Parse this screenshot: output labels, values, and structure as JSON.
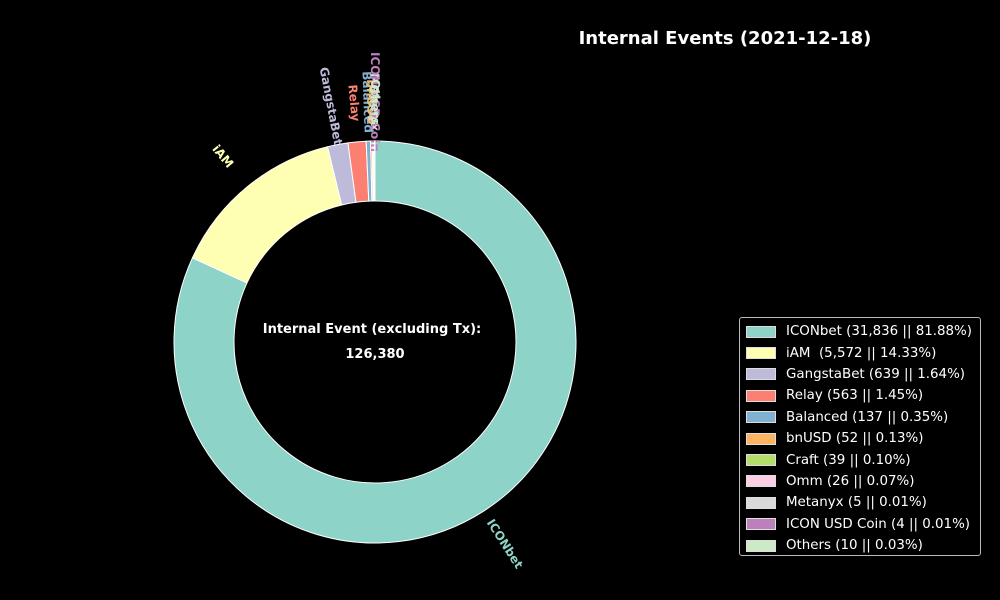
{
  "chart_data": {
    "type": "pie",
    "title": "Internal Events (2021-12-18)",
    "center_label": "Internal Event (excluding Tx):",
    "center_value": "126,380",
    "slices": [
      {
        "name": "ICONbet",
        "value": 31836,
        "percent": 81.88,
        "color": "#8dd3c7",
        "legend": "ICONbet (31,836 || 81.88%)"
      },
      {
        "name": "iAM",
        "value": 5572,
        "percent": 14.33,
        "color": "#ffffb3",
        "legend": "iAM  (5,572 || 14.33%)"
      },
      {
        "name": "GangstaBet",
        "value": 639,
        "percent": 1.64,
        "color": "#bebada",
        "legend": "GangstaBet (639 || 1.64%)"
      },
      {
        "name": "Relay",
        "value": 563,
        "percent": 1.45,
        "color": "#fb8072",
        "legend": "Relay (563 || 1.45%)"
      },
      {
        "name": "Balanced",
        "value": 137,
        "percent": 0.35,
        "color": "#80b1d3",
        "legend": "Balanced (137 || 0.35%)"
      },
      {
        "name": "bnUSD",
        "value": 52,
        "percent": 0.13,
        "color": "#fdb462",
        "legend": "bnUSD (52 || 0.13%)"
      },
      {
        "name": "Craft",
        "value": 39,
        "percent": 0.1,
        "color": "#b3de69",
        "legend": "Craft (39 || 0.10%)"
      },
      {
        "name": "Omm",
        "value": 26,
        "percent": 0.07,
        "color": "#fccde5",
        "legend": "Omm (26 || 0.07%)"
      },
      {
        "name": "Metanyx",
        "value": 5,
        "percent": 0.01,
        "color": "#d9d9d9",
        "legend": "Metanyx (5 || 0.01%)"
      },
      {
        "name": "ICON USD Coin",
        "value": 4,
        "percent": 0.01,
        "color": "#bc80bd",
        "legend": "ICON USD Coin (4 || 0.01%)"
      },
      {
        "name": "Others",
        "value": 10,
        "percent": 0.03,
        "color": "#ccebc5",
        "legend": "Others (10 || 0.03%)"
      }
    ],
    "legend_position": "lower-right"
  }
}
